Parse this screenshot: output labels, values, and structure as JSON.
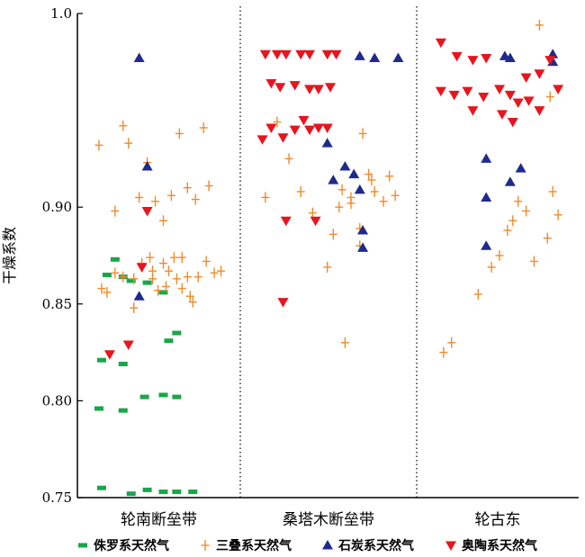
{
  "chart_data": {
    "type": "scatter",
    "ylabel": "干燥系数",
    "ylim": [
      0.75,
      1.0
    ],
    "yticks": [
      {
        "value": 0.75,
        "label": "0.75"
      },
      {
        "value": 0.8,
        "label": "0.80"
      },
      {
        "value": 0.85,
        "label": "0.85"
      },
      {
        "value": 0.9,
        "label": "0.90"
      },
      {
        "value": 1.0,
        "label": "1.0"
      }
    ],
    "groups": [
      "轮南断垒带",
      "桑塔木断垒带",
      "轮古东"
    ],
    "grid": false,
    "legend_position": "bottom",
    "series": [
      {
        "name": "侏罗系天然气",
        "marker": "dash",
        "color": "#1aa64a",
        "points": [
          [
            0.1,
            0.865
          ],
          [
            0.16,
            0.873
          ],
          [
            0.22,
            0.864
          ],
          [
            0.28,
            0.862
          ],
          [
            0.4,
            0.861
          ],
          [
            0.52,
            0.856
          ],
          [
            0.06,
            0.821
          ],
          [
            0.22,
            0.819
          ],
          [
            0.56,
            0.831
          ],
          [
            0.62,
            0.835
          ],
          [
            0.04,
            0.796
          ],
          [
            0.22,
            0.795
          ],
          [
            0.38,
            0.802
          ],
          [
            0.52,
            0.803
          ],
          [
            0.62,
            0.802
          ],
          [
            0.06,
            0.755
          ],
          [
            0.28,
            0.752
          ],
          [
            0.4,
            0.754
          ],
          [
            0.52,
            0.753
          ],
          [
            0.62,
            0.753
          ],
          [
            0.74,
            0.753
          ]
        ]
      },
      {
        "name": "三叠系天然气",
        "marker": "plus",
        "color": "#f28a2a",
        "points": [
          [
            0.04,
            0.932
          ],
          [
            0.16,
            0.898
          ],
          [
            0.22,
            0.942
          ],
          [
            0.26,
            0.933
          ],
          [
            0.34,
            0.905
          ],
          [
            0.4,
            0.923
          ],
          [
            0.46,
            0.903
          ],
          [
            0.52,
            0.893
          ],
          [
            0.58,
            0.906
          ],
          [
            0.64,
            0.938
          ],
          [
            0.7,
            0.91
          ],
          [
            0.76,
            0.904
          ],
          [
            0.82,
            0.941
          ],
          [
            0.86,
            0.911
          ],
          [
            0.06,
            0.858
          ],
          [
            0.1,
            0.856
          ],
          [
            0.16,
            0.866
          ],
          [
            0.22,
            0.864
          ],
          [
            0.3,
            0.863
          ],
          [
            0.36,
            0.871
          ],
          [
            0.42,
            0.874
          ],
          [
            0.44,
            0.863
          ],
          [
            0.48,
            0.857
          ],
          [
            0.52,
            0.871
          ],
          [
            0.56,
            0.867
          ],
          [
            0.6,
            0.874
          ],
          [
            0.62,
            0.863
          ],
          [
            0.66,
            0.858
          ],
          [
            0.7,
            0.864
          ],
          [
            0.74,
            0.851
          ],
          [
            0.78,
            0.864
          ],
          [
            0.84,
            0.872
          ],
          [
            0.9,
            0.866
          ],
          [
            0.95,
            0.867
          ],
          [
            0.3,
            0.848
          ],
          [
            0.44,
            0.867
          ],
          [
            0.54,
            0.859
          ],
          [
            0.66,
            0.874
          ],
          [
            0.72,
            0.854
          ],
          [
            0.06,
            0.905
          ],
          [
            0.14,
            0.944
          ],
          [
            0.22,
            0.925
          ],
          [
            0.3,
            0.908
          ],
          [
            0.38,
            0.897
          ],
          [
            0.52,
            0.886
          ],
          [
            0.58,
            0.909
          ],
          [
            0.64,
            0.902
          ],
          [
            0.7,
            0.889
          ],
          [
            0.76,
            0.917
          ],
          [
            0.8,
            0.908
          ],
          [
            0.86,
            0.903
          ],
          [
            0.9,
            0.916
          ],
          [
            0.94,
            0.906
          ],
          [
            0.48,
            0.869
          ],
          [
            0.6,
            0.83
          ],
          [
            0.72,
            0.938
          ],
          [
            0.78,
            0.914
          ],
          [
            0.56,
            0.9
          ],
          [
            0.64,
            0.905
          ],
          [
            0.7,
            0.88
          ],
          [
            0.08,
            0.825
          ],
          [
            0.14,
            0.83
          ],
          [
            0.34,
            0.855
          ],
          [
            0.44,
            0.869
          ],
          [
            0.5,
            0.875
          ],
          [
            0.56,
            0.888
          ],
          [
            0.6,
            0.893
          ],
          [
            0.64,
            0.903
          ],
          [
            0.7,
            0.898
          ],
          [
            0.76,
            0.872
          ],
          [
            0.8,
            0.994
          ],
          [
            0.86,
            0.884
          ],
          [
            0.9,
            0.908
          ],
          [
            0.94,
            0.896
          ],
          [
            0.88,
            0.957
          ]
        ]
      },
      {
        "name": "石炭系天然气",
        "marker": "triangle-up",
        "color": "#1f2a8c",
        "points": [
          [
            0.34,
            0.977
          ],
          [
            0.4,
            0.921
          ],
          [
            0.34,
            0.854
          ],
          [
            0.7,
            0.978
          ],
          [
            0.8,
            0.977
          ],
          [
            0.96,
            0.977
          ],
          [
            0.48,
            0.933
          ],
          [
            0.52,
            0.914
          ],
          [
            0.6,
            0.921
          ],
          [
            0.66,
            0.917
          ],
          [
            0.72,
            0.888
          ],
          [
            0.72,
            0.879
          ],
          [
            0.7,
            0.909
          ],
          [
            0.58,
            0.913
          ],
          [
            0.54,
            0.978
          ],
          [
            0.66,
            0.92
          ],
          [
            0.9,
            0.979
          ],
          [
            0.58,
            0.977
          ],
          [
            0.4,
            0.905
          ],
          [
            0.4,
            0.925
          ],
          [
            0.4,
            0.88
          ],
          [
            0.9,
            0.975
          ]
        ]
      },
      {
        "name": "奥陶系天然气",
        "marker": "triangle-down",
        "color": "#e8141e",
        "points": [
          [
            0.4,
            0.898
          ],
          [
            0.36,
            0.869
          ],
          [
            0.12,
            0.824
          ],
          [
            0.26,
            0.829
          ],
          [
            0.06,
            0.979
          ],
          [
            0.14,
            0.979
          ],
          [
            0.2,
            0.979
          ],
          [
            0.3,
            0.979
          ],
          [
            0.36,
            0.979
          ],
          [
            0.48,
            0.979
          ],
          [
            0.54,
            0.979
          ],
          [
            0.1,
            0.964
          ],
          [
            0.16,
            0.962
          ],
          [
            0.26,
            0.963
          ],
          [
            0.36,
            0.961
          ],
          [
            0.42,
            0.961
          ],
          [
            0.5,
            0.962
          ],
          [
            0.04,
            0.935
          ],
          [
            0.1,
            0.941
          ],
          [
            0.18,
            0.936
          ],
          [
            0.26,
            0.94
          ],
          [
            0.32,
            0.945
          ],
          [
            0.36,
            0.94
          ],
          [
            0.42,
            0.941
          ],
          [
            0.48,
            0.941
          ],
          [
            0.2,
            0.893
          ],
          [
            0.4,
            0.893
          ],
          [
            0.18,
            0.851
          ],
          [
            0.06,
            0.985
          ],
          [
            0.18,
            0.978
          ],
          [
            0.3,
            0.976
          ],
          [
            0.4,
            0.977
          ],
          [
            0.06,
            0.96
          ],
          [
            0.16,
            0.958
          ],
          [
            0.26,
            0.96
          ],
          [
            0.38,
            0.957
          ],
          [
            0.5,
            0.961
          ],
          [
            0.58,
            0.958
          ],
          [
            0.64,
            0.954
          ],
          [
            0.72,
            0.955
          ],
          [
            0.8,
            0.95
          ],
          [
            0.88,
            0.976
          ],
          [
            0.94,
            0.961
          ],
          [
            0.3,
            0.95
          ],
          [
            0.52,
            0.948
          ],
          [
            0.6,
            0.944
          ],
          [
            0.8,
            0.969
          ],
          [
            0.7,
            0.967
          ]
        ]
      }
    ]
  },
  "legend": [
    {
      "label": "侏罗系天然气",
      "marker": "dash",
      "color": "#1aa64a"
    },
    {
      "label": "三叠系天然气",
      "marker": "plus",
      "color": "#f28a2a"
    },
    {
      "label": "石炭系天然气",
      "marker": "triangle-up",
      "color": "#1f2a8c"
    },
    {
      "label": "奥陶系天然气",
      "marker": "triangle-down",
      "color": "#e8141e"
    }
  ]
}
